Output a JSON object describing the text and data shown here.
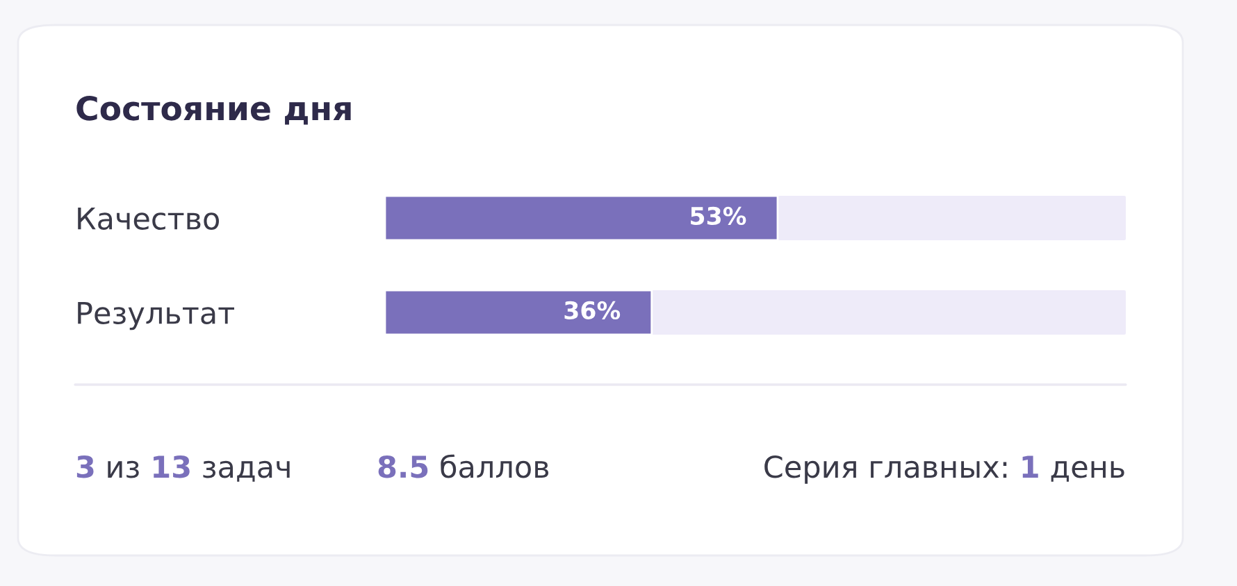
{
  "chart_data": {
    "type": "bar",
    "orientation": "horizontal",
    "title": "Состояние дня",
    "categories": [
      "Качество",
      "Результат"
    ],
    "values": [
      53,
      36
    ],
    "value_labels": [
      "53%",
      "36%"
    ],
    "color": "#7a70bb",
    "xlim": [
      0,
      100
    ],
    "tick_labels": "y",
    "annotations": [
      "3 из 13 задач",
      "8.5 баллов",
      "Серия главных: 1 день"
    ]
  }
}
